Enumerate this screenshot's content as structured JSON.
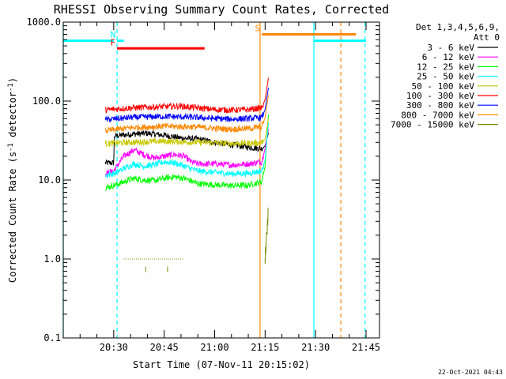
{
  "chart_data": {
    "type": "line",
    "title": "RHESSI Observing Summary Count Rates, Corrected",
    "xlabel": "Start Time (07-Nov-11 20:15:02)",
    "ylabel": "Corrected Count Rate (s^-1 detector^-1)",
    "ylabel_parts": {
      "main": "Corrected Count Rate (s",
      "sup1": "-1",
      "mid": " detector",
      "sup2": "-1",
      "end": ")"
    },
    "yscale": "log",
    "ylim": [
      0.1,
      1000
    ],
    "xlim_minutes_after_start": [
      0,
      94
    ],
    "y_tick_labels": [
      "0.1",
      "1.0",
      "10.0",
      "100.0",
      "1000.0"
    ],
    "x_tick_labels": [
      "20:30",
      "20:45",
      "21:00",
      "21:15",
      "21:30",
      "21:45"
    ],
    "x_tick_minutes_after_start": [
      15,
      30,
      45,
      60,
      75,
      90
    ],
    "legend_header": [
      "Det 1,3,4,5,6,9,",
      "Att 0"
    ],
    "series": [
      {
        "name": "3 - 6 keV",
        "color": "#000000",
        "level": 35,
        "points": [
          [
            12.5,
            16.5
          ],
          [
            15,
            16.5
          ],
          [
            15.2,
            36
          ],
          [
            20,
            38
          ],
          [
            25,
            39
          ],
          [
            30,
            37
          ],
          [
            35,
            34
          ],
          [
            40,
            33
          ],
          [
            45,
            30
          ],
          [
            50,
            28
          ],
          [
            55,
            26
          ],
          [
            59,
            25
          ],
          [
            60,
            27
          ],
          [
            61,
            40
          ]
        ]
      },
      {
        "name": "6 - 12 keV",
        "color": "#ff00ff",
        "level": 20,
        "points": [
          [
            12.5,
            12
          ],
          [
            15,
            13
          ],
          [
            18,
            20
          ],
          [
            21,
            24
          ],
          [
            24,
            21
          ],
          [
            27,
            19
          ],
          [
            30,
            20
          ],
          [
            33,
            21
          ],
          [
            36,
            20
          ],
          [
            38,
            17
          ],
          [
            40,
            16
          ],
          [
            45,
            16
          ],
          [
            50,
            15.5
          ],
          [
            55,
            16
          ],
          [
            59,
            17
          ],
          [
            60,
            25
          ],
          [
            61,
            45
          ]
        ]
      },
      {
        "name": "12 - 25 keV",
        "color": "#00ff00",
        "level": 9.5,
        "points": [
          [
            12.5,
            8
          ],
          [
            15,
            8.5
          ],
          [
            18,
            9.5
          ],
          [
            21,
            10.5
          ],
          [
            24,
            10
          ],
          [
            27,
            9.8
          ],
          [
            30,
            10.5
          ],
          [
            33,
            11
          ],
          [
            36,
            10.5
          ],
          [
            40,
            9
          ],
          [
            45,
            8.7
          ],
          [
            50,
            8.5
          ],
          [
            55,
            8.6
          ],
          [
            59,
            9.5
          ],
          [
            60,
            15
          ],
          [
            61,
            70
          ]
        ]
      },
      {
        "name": "25 - 50 keV",
        "color": "#00ffff",
        "level": 14,
        "points": [
          [
            12.5,
            11.5
          ],
          [
            15,
            12
          ],
          [
            18,
            14
          ],
          [
            21,
            16
          ],
          [
            24,
            15
          ],
          [
            27,
            15.5
          ],
          [
            30,
            17
          ],
          [
            33,
            16.5
          ],
          [
            36,
            15
          ],
          [
            40,
            13
          ],
          [
            45,
            12.5
          ],
          [
            50,
            12
          ],
          [
            55,
            12.2
          ],
          [
            59,
            13
          ],
          [
            60,
            18
          ],
          [
            61,
            55
          ]
        ]
      },
      {
        "name": "50 - 100 keV",
        "color": "#c8c800",
        "level": 30,
        "points": [
          [
            12.5,
            29
          ],
          [
            20,
            30
          ],
          [
            30,
            31
          ],
          [
            40,
            30
          ],
          [
            50,
            29
          ],
          [
            59,
            29.5
          ],
          [
            60,
            33
          ],
          [
            61,
            60
          ]
        ]
      },
      {
        "name": "100 - 300 keV",
        "color": "#ff0000",
        "level": 80,
        "points": [
          [
            12.5,
            77
          ],
          [
            20,
            82
          ],
          [
            30,
            85
          ],
          [
            35,
            86
          ],
          [
            40,
            82
          ],
          [
            45,
            78
          ],
          [
            50,
            77
          ],
          [
            55,
            78
          ],
          [
            59,
            82
          ],
          [
            60,
            105
          ],
          [
            61,
            200
          ]
        ]
      },
      {
        "name": "300 - 800 keV",
        "color": "#0000ff",
        "level": 60,
        "points": [
          [
            12.5,
            58
          ],
          [
            20,
            62
          ],
          [
            30,
            64
          ],
          [
            40,
            62
          ],
          [
            45,
            60
          ],
          [
            50,
            59
          ],
          [
            55,
            60
          ],
          [
            59,
            62
          ],
          [
            60,
            78
          ],
          [
            61,
            150
          ]
        ]
      },
      {
        "name": "800 - 7000 keV",
        "color": "#ff8800",
        "level": 45,
        "points": [
          [
            12.5,
            42
          ],
          [
            20,
            46
          ],
          [
            30,
            48
          ],
          [
            40,
            47
          ],
          [
            45,
            45
          ],
          [
            50,
            44
          ],
          [
            55,
            45
          ],
          [
            59,
            47
          ],
          [
            60,
            62
          ],
          [
            61,
            120
          ]
        ]
      },
      {
        "name": "7000 - 15000 keV",
        "color": "#6e8c00",
        "level": 1.0,
        "points": [
          [
            18,
            1.0
          ],
          [
            27,
            1.0
          ],
          [
            36,
            1.0
          ],
          [
            60,
            1.0
          ],
          [
            60.5,
            2.0
          ],
          [
            61,
            4.0
          ]
        ]
      }
    ],
    "flag_bars": [
      {
        "label": "",
        "color": "#00ffff",
        "start": 0,
        "end": 15,
        "y": 580
      },
      {
        "label": "N",
        "color": "#00ffff",
        "start": 16,
        "end": 18,
        "y": 580
      },
      {
        "label": "F",
        "color": "#ff0000",
        "start": 16,
        "end": 42,
        "y": 465
      },
      {
        "label": "S",
        "color": "#ff8800",
        "start": 59,
        "end": 87,
        "y": 700
      },
      {
        "label": "",
        "color": "#00ffff",
        "start": 74.5,
        "end": 90,
        "y": 580
      }
    ],
    "vertical_lines": [
      {
        "x": 0,
        "color": "#00ffff",
        "style": "solid"
      },
      {
        "x": 16,
        "color": "#00ffff",
        "style": "dashed"
      },
      {
        "x": 58.5,
        "color": "#ff8800",
        "style": "solid"
      },
      {
        "x": 74.5,
        "color": "#00ffff",
        "style": "solid"
      },
      {
        "x": 82.5,
        "color": "#ff8800",
        "style": "dashed"
      },
      {
        "x": 89.7,
        "color": "#00ffff",
        "style": "dashed"
      }
    ],
    "legend_placement": "right",
    "grid": false
  },
  "footer": {
    "timestamp": "22-Oct-2021 04:43"
  }
}
